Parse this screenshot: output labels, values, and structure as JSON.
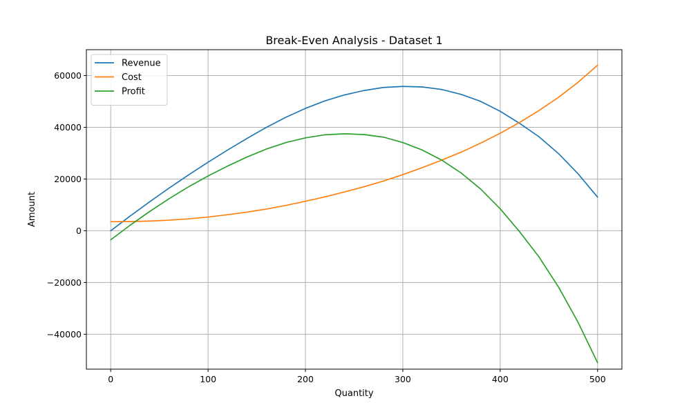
{
  "chart_data": {
    "type": "line",
    "title": "Break-Even Analysis - Dataset 1",
    "xlabel": "Quantity",
    "ylabel": "Amount",
    "xlim": [
      -25,
      525
    ],
    "ylim": [
      -53500,
      70000
    ],
    "xticks": [
      0,
      100,
      200,
      300,
      400,
      500
    ],
    "yticks": [
      -40000,
      -20000,
      0,
      20000,
      40000,
      60000
    ],
    "xtick_labels": [
      "0",
      "100",
      "200",
      "300",
      "400",
      "500"
    ],
    "ytick_labels": [
      "−40000",
      "−20000",
      "0",
      "20000",
      "40000",
      "60000"
    ],
    "grid": true,
    "legend_position": "top-left",
    "x": [
      0,
      20,
      40,
      60,
      80,
      100,
      120,
      140,
      160,
      180,
      200,
      220,
      240,
      260,
      280,
      300,
      320,
      340,
      360,
      380,
      400,
      420,
      440,
      460,
      480,
      500
    ],
    "series": [
      {
        "name": "Revenue",
        "color": "#1f77b4",
        "values": [
          0,
          5700,
          11200,
          16500,
          21600,
          26500,
          31200,
          35700,
          40000,
          43900,
          47300,
          50200,
          52500,
          54200,
          55400,
          55800,
          55600,
          54600,
          52700,
          50000,
          46200,
          41500,
          36300,
          29800,
          22000,
          13000
        ]
      },
      {
        "name": "Cost",
        "color": "#ff7f0e",
        "values": [
          3500,
          3550,
          3750,
          4100,
          4600,
          5300,
          6200,
          7200,
          8400,
          9800,
          11400,
          13100,
          15000,
          17000,
          19200,
          21700,
          24400,
          27300,
          30400,
          33900,
          37700,
          41900,
          46500,
          51600,
          57400,
          64000
        ]
      },
      {
        "name": "Profit",
        "color": "#2ca02c",
        "values": [
          -3500,
          2150,
          7450,
          12400,
          17000,
          21200,
          25000,
          28500,
          31600,
          34100,
          35900,
          37100,
          37500,
          37200,
          36200,
          34100,
          31200,
          27300,
          22300,
          16100,
          8500,
          -400,
          -10200,
          -21800,
          -35400,
          -51000
        ]
      }
    ]
  }
}
